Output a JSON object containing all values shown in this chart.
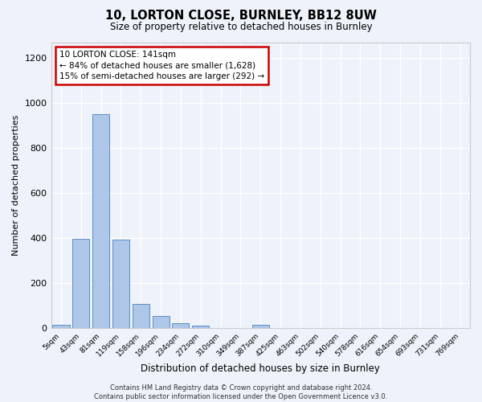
{
  "title1": "10, LORTON CLOSE, BURNLEY, BB12 8UW",
  "title2": "Size of property relative to detached houses in Burnley",
  "xlabel": "Distribution of detached houses by size in Burnley",
  "ylabel": "Number of detached properties",
  "categories": [
    "5sqm",
    "43sqm",
    "81sqm",
    "119sqm",
    "158sqm",
    "196sqm",
    "234sqm",
    "272sqm",
    "310sqm",
    "349sqm",
    "387sqm",
    "425sqm",
    "463sqm",
    "502sqm",
    "540sqm",
    "578sqm",
    "616sqm",
    "654sqm",
    "693sqm",
    "731sqm",
    "769sqm"
  ],
  "values": [
    13,
    397,
    950,
    393,
    108,
    55,
    22,
    12,
    0,
    0,
    14,
    0,
    0,
    0,
    0,
    0,
    0,
    0,
    0,
    0,
    0
  ],
  "bar_color": "#aec6e8",
  "bar_edge_color": "#5b8ec4",
  "highlight_bar_index": 3,
  "ylim": [
    0,
    1270
  ],
  "yticks": [
    0,
    200,
    400,
    600,
    800,
    1000,
    1200
  ],
  "annotation_text": "10 LORTON CLOSE: 141sqm\n← 84% of detached houses are smaller (1,628)\n15% of semi-detached houses are larger (292) →",
  "annotation_box_color": "#ffffff",
  "annotation_box_edge_color": "#cc0000",
  "background_color": "#eef2fa",
  "grid_color": "#ffffff",
  "footer": "Contains HM Land Registry data © Crown copyright and database right 2024.\nContains public sector information licensed under the Open Government Licence v3.0."
}
